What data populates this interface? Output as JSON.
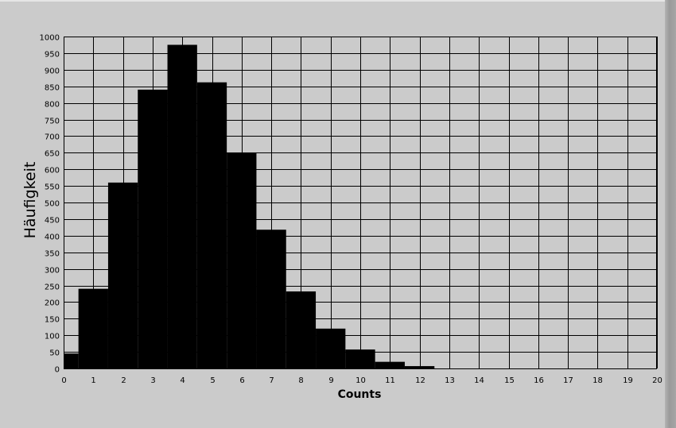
{
  "chart_data": {
    "type": "bar",
    "xlabel": "Counts",
    "ylabel": "Häufigkeit",
    "xlim": [
      0,
      20
    ],
    "ylim": [
      0,
      1000
    ],
    "x_ticks": [
      0,
      1,
      2,
      3,
      4,
      5,
      6,
      7,
      8,
      9,
      10,
      11,
      12,
      13,
      14,
      15,
      16,
      17,
      18,
      19,
      20
    ],
    "y_ticks": [
      0,
      50,
      100,
      150,
      200,
      250,
      300,
      350,
      400,
      450,
      500,
      550,
      600,
      650,
      700,
      750,
      800,
      850,
      900,
      950,
      1000
    ],
    "grid": true,
    "bar_width": 1,
    "categories": [
      0,
      1,
      2,
      3,
      4,
      5,
      6,
      7,
      8,
      9,
      10,
      11,
      12
    ],
    "values": [
      45,
      240,
      560,
      840,
      975,
      862,
      650,
      418,
      232,
      120,
      57,
      20,
      7
    ],
    "colors": {
      "bars": "#000000",
      "plot_background": "#cbcbcb",
      "grid": "#000000"
    }
  }
}
